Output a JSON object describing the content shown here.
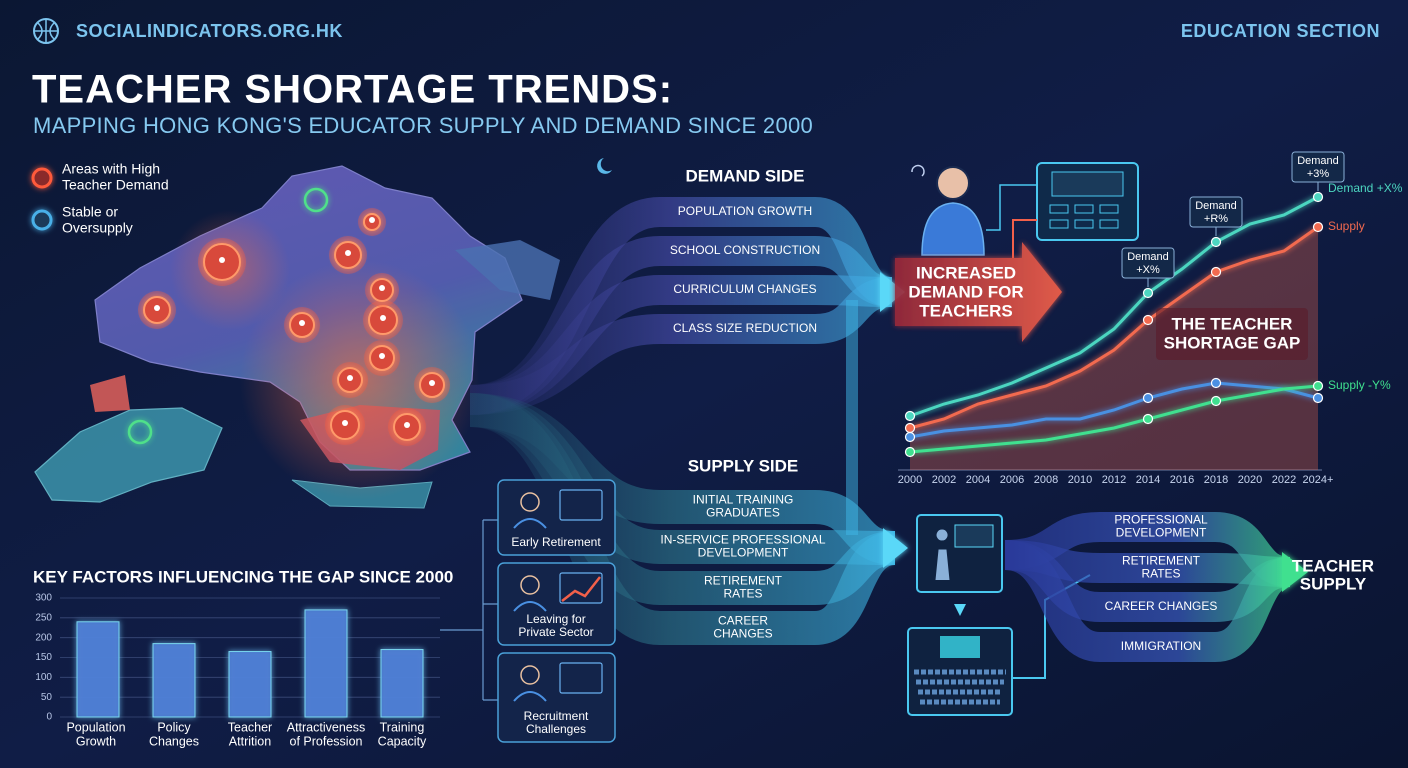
{
  "header": {
    "site": "SOCIALINDICATORS.ORG.HK",
    "section": "EDUCATION SECTION",
    "title": "TEACHER SHORTAGE TRENDS:",
    "subtitle": "MAPPING HONG KONG'S EDUCATOR SUPPLY AND DEMAND SINCE 2000"
  },
  "map_legend": [
    [
      "Areas with High",
      "Teacher Demand"
    ],
    [
      "Stable or",
      "Oversupply"
    ]
  ],
  "demand_side": {
    "title": "DEMAND SIDE",
    "items": [
      [
        "POPULATION GROWTH"
      ],
      [
        "SCHOOL CONSTRUCTION"
      ],
      [
        "CURRICULUM CHANGES"
      ],
      [
        "CLASS SIZE REDUCTION"
      ]
    ]
  },
  "increased_demand": [
    "INCREASED",
    "DEMAND FOR",
    "TEACHERS"
  ],
  "supply_side": {
    "title": "SUPPLY SIDE",
    "items": [
      [
        "INITIAL TRAINING",
        "GRADUATES"
      ],
      [
        "IN-SERVICE PROFESSIONAL",
        "DEVELOPMENT"
      ],
      [
        "RETIREMENT",
        "RATES"
      ],
      [
        "CAREER",
        "CHANGES"
      ]
    ]
  },
  "outflow_cards": [
    [
      "Early Retirement"
    ],
    [
      "Leaving for",
      "Private Sector"
    ],
    [
      "Recruitment",
      "Challenges"
    ]
  ],
  "teacher_supply": {
    "inputs": [
      [
        "PROFESSIONAL",
        "DEVELOPMENT"
      ],
      [
        "RETIREMENT",
        "RATES"
      ],
      [
        "CAREER CHANGES"
      ],
      [
        "IMMIGRATION"
      ]
    ],
    "result": [
      "TEACHER",
      "SUPPLY"
    ]
  },
  "chart_data": [
    {
      "type": "line",
      "categories": [
        "2000",
        "2002",
        "2004",
        "2006",
        "2008",
        "2010",
        "2012",
        "2014",
        "2016",
        "2018",
        "2020",
        "2022",
        "2024+"
      ],
      "ylim": [
        0,
        100
      ],
      "series": [
        {
          "name": "Demand +X%",
          "color": "#4cd6c0",
          "values": [
            18,
            22,
            25,
            29,
            34,
            39,
            47,
            59,
            67,
            76,
            82,
            85,
            91
          ]
        },
        {
          "name": "Supply",
          "color": "#f26a4f",
          "area": true,
          "values": [
            14,
            17,
            22,
            25,
            28,
            33,
            40,
            50,
            58,
            66,
            70,
            73,
            81
          ]
        },
        {
          "color": "#4a90e2",
          "values": [
            11,
            13,
            14,
            15,
            17,
            17,
            20,
            24,
            27,
            29,
            28,
            27,
            24
          ]
        },
        {
          "name": "Supply -Y%",
          "color": "#3fe08f",
          "values": [
            6,
            7,
            8,
            9,
            10,
            12,
            14,
            17,
            20,
            23,
            25,
            27,
            28
          ]
        }
      ],
      "callouts": [
        {
          "title": "Demand",
          "change": "+X%"
        },
        {
          "title": "Demand",
          "change": "+R%"
        },
        {
          "title": "Demand",
          "change": "+3%"
        }
      ],
      "gap_label": [
        "THE TEACHER",
        "SHORTAGE GAP"
      ]
    },
    {
      "type": "bar",
      "title": "KEY FACTORS INFLUENCING THE GAP SINCE 2000",
      "categories": [
        [
          "Population",
          "Growth"
        ],
        [
          "Policy",
          "Changes"
        ],
        [
          "Teacher",
          "Attrition"
        ],
        [
          "Attractiveness",
          "of Profession"
        ],
        [
          "Training",
          "Capacity"
        ]
      ],
      "values": [
        240,
        185,
        165,
        270,
        170
      ],
      "color": "#4f7fd6",
      "ylim": [
        0,
        300
      ],
      "yticks": [
        0,
        50,
        100,
        150,
        200,
        250,
        300
      ],
      "grid": true
    }
  ]
}
